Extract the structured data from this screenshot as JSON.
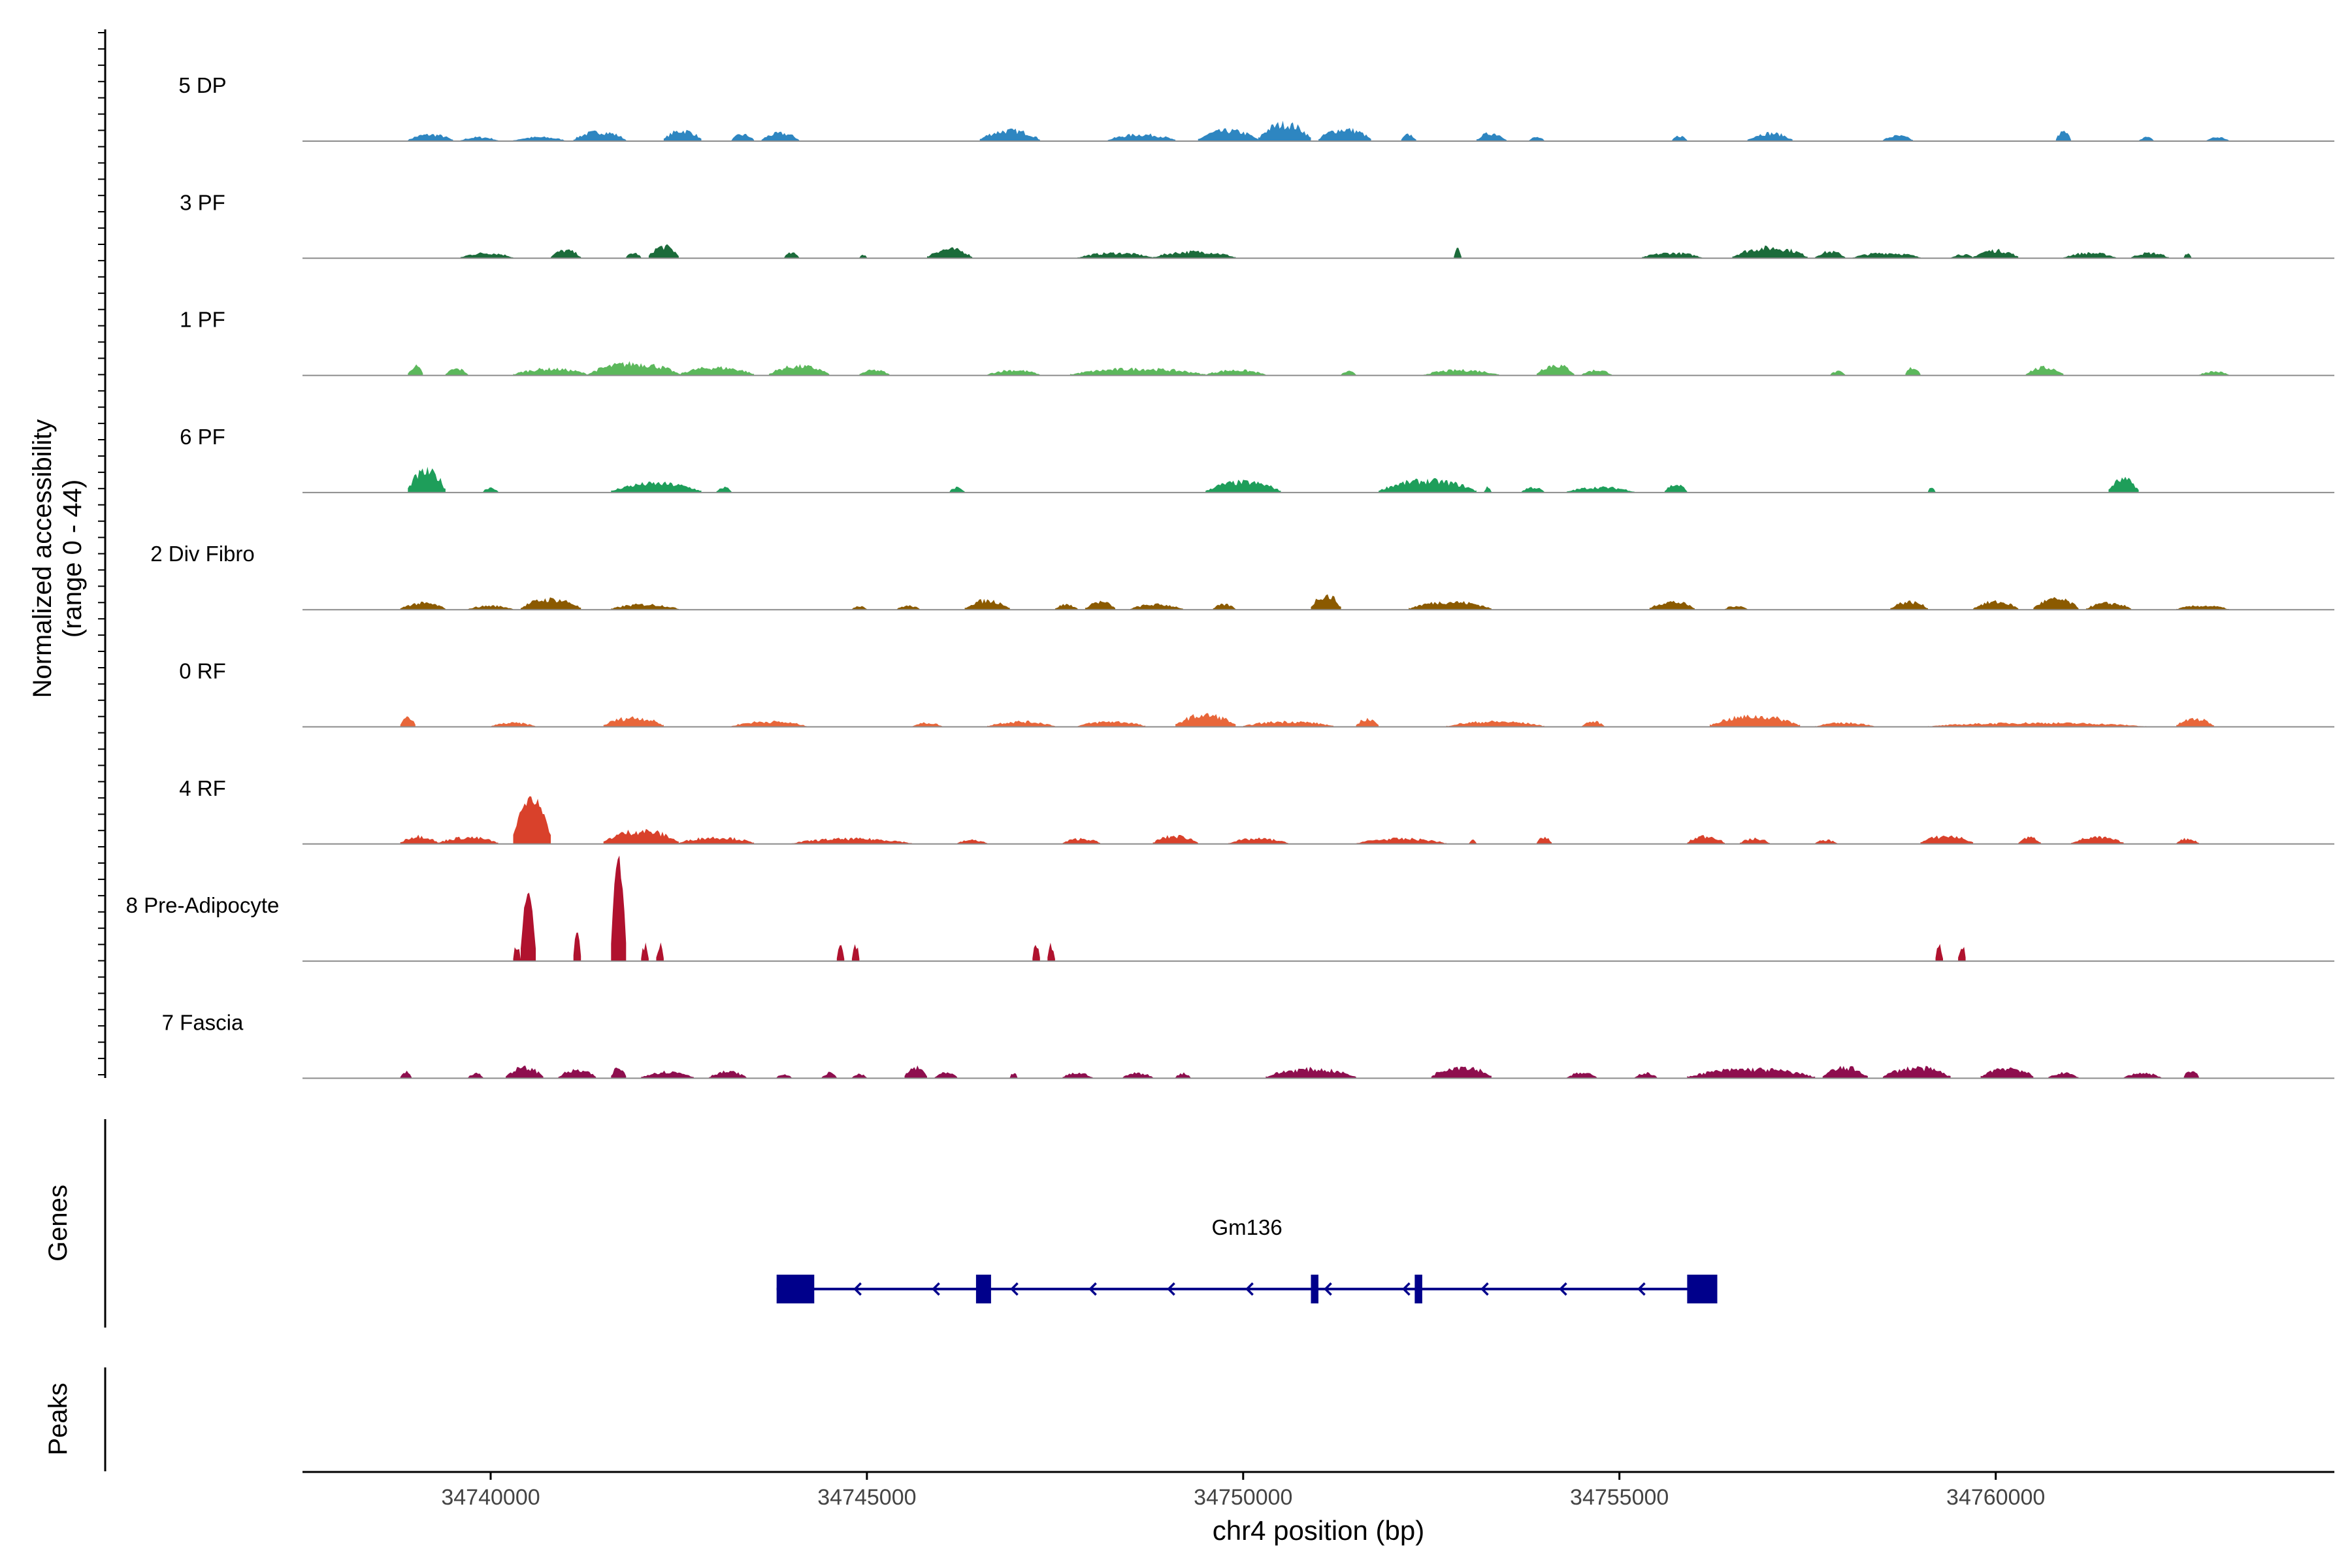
{
  "chart_data": {
    "type": "coverage-tracks",
    "title": "",
    "ylabel_line1": "Normalized accessibility",
    "ylabel_line2": "(range 0 - 44)",
    "yrange": [
      0,
      44
    ],
    "xlabel": "chr4 position (bp)",
    "xlim": [
      34737500,
      34764500
    ],
    "xticks": [
      34740000,
      34745000,
      34750000,
      34755000,
      34760000
    ],
    "xtick_labels": [
      "34740000",
      "34745000",
      "34750000",
      "34755000",
      "34760000"
    ],
    "tracks": [
      {
        "name": "5 DP",
        "color": "#2E86C1",
        "peaks": [
          [
            34738900,
            34739500,
            2.5
          ],
          [
            34739600,
            34740100,
            1.5
          ],
          [
            34740300,
            34741000,
            1.5
          ],
          [
            34741100,
            34741800,
            3.5
          ],
          [
            34742300,
            34742800,
            4
          ],
          [
            34743200,
            34743500,
            2.5
          ],
          [
            34743600,
            34744100,
            3
          ],
          [
            34746500,
            34747300,
            4
          ],
          [
            34748200,
            34749100,
            2.5
          ],
          [
            34749400,
            34750200,
            4
          ],
          [
            34750200,
            34750900,
            6.5
          ],
          [
            34751000,
            34751700,
            4.5
          ],
          [
            34752100,
            34752300,
            2.5
          ],
          [
            34753100,
            34753500,
            3
          ],
          [
            34753800,
            34754000,
            1.5
          ],
          [
            34755700,
            34755900,
            2
          ],
          [
            34756700,
            34757300,
            3
          ],
          [
            34758500,
            34758900,
            2
          ],
          [
            34760800,
            34761000,
            3.5
          ],
          [
            34761900,
            34762100,
            1.5
          ],
          [
            34762800,
            34763100,
            1.5
          ]
        ]
      },
      {
        "name": "3 PF",
        "color": "#1B6B3A",
        "peaks": [
          [
            34739600,
            34740300,
            2
          ],
          [
            34740800,
            34741200,
            3
          ],
          [
            34741800,
            34742000,
            2
          ],
          [
            34742100,
            34742500,
            4.5
          ],
          [
            34743900,
            34744100,
            2
          ],
          [
            34744900,
            34745000,
            1.5
          ],
          [
            34745800,
            34746400,
            3.5
          ],
          [
            34747800,
            34748800,
            2
          ],
          [
            34748800,
            34749900,
            2.5
          ],
          [
            34752800,
            34752900,
            3.5
          ],
          [
            34755300,
            34756100,
            2
          ],
          [
            34756500,
            34757500,
            4
          ],
          [
            34757600,
            34758000,
            2.5
          ],
          [
            34758100,
            34759000,
            2
          ],
          [
            34759400,
            34759700,
            1.5
          ],
          [
            34759700,
            34760300,
            3
          ],
          [
            34760900,
            34761600,
            2
          ],
          [
            34761800,
            34762300,
            2
          ],
          [
            34762500,
            34762600,
            2
          ]
        ]
      },
      {
        "name": "1 PF",
        "color": "#5CB85C",
        "peaks": [
          [
            34738900,
            34739100,
            3.5
          ],
          [
            34739400,
            34739700,
            2.5
          ],
          [
            34740300,
            34741300,
            2.5
          ],
          [
            34741300,
            34742500,
            4.5
          ],
          [
            34742500,
            34743500,
            3
          ],
          [
            34743700,
            34744500,
            3.5
          ],
          [
            34744900,
            34745300,
            2
          ],
          [
            34746600,
            34747300,
            2
          ],
          [
            34747700,
            34749500,
            2.5
          ],
          [
            34749500,
            34750300,
            2
          ],
          [
            34751300,
            34751500,
            1.5
          ],
          [
            34752400,
            34753400,
            2
          ],
          [
            34753900,
            34754400,
            4
          ],
          [
            34754500,
            34754900,
            2
          ],
          [
            34757800,
            34758000,
            1.5
          ],
          [
            34758800,
            34759000,
            3
          ],
          [
            34760400,
            34760900,
            3
          ],
          [
            34762700,
            34763100,
            1.5
          ]
        ]
      },
      {
        "name": "6 PF",
        "color": "#1E9E5A",
        "peaks": [
          [
            34738900,
            34739400,
            8
          ],
          [
            34739900,
            34740100,
            2
          ],
          [
            34741600,
            34742800,
            3.5
          ],
          [
            34743000,
            34743200,
            2
          ],
          [
            34746100,
            34746300,
            2
          ],
          [
            34749500,
            34750500,
            4
          ],
          [
            34751800,
            34753100,
            4.5
          ],
          [
            34753200,
            34753300,
            2
          ],
          [
            34753700,
            34754000,
            2
          ],
          [
            34754300,
            34755200,
            2
          ],
          [
            34755600,
            34755900,
            3
          ],
          [
            34759100,
            34759200,
            2
          ],
          [
            34761500,
            34761900,
            5
          ]
        ]
      },
      {
        "name": "2 Div Fibro",
        "color": "#8B5A00",
        "peaks": [
          [
            34738800,
            34739400,
            2.5
          ],
          [
            34739700,
            34740300,
            1.5
          ],
          [
            34740400,
            34741200,
            4
          ],
          [
            34741600,
            34742500,
            2
          ],
          [
            34744800,
            34745000,
            1.5
          ],
          [
            34745400,
            34745700,
            1.5
          ],
          [
            34746300,
            34746900,
            3.5
          ],
          [
            34747500,
            34747800,
            2
          ],
          [
            34747900,
            34748300,
            3
          ],
          [
            34748500,
            34749200,
            2
          ],
          [
            34749600,
            34749900,
            2
          ],
          [
            34750900,
            34751300,
            5.5
          ],
          [
            34752200,
            34753300,
            3
          ],
          [
            34755400,
            34756000,
            3
          ],
          [
            34756400,
            34756700,
            1.5
          ],
          [
            34758600,
            34759100,
            3
          ],
          [
            34759700,
            34760300,
            3
          ],
          [
            34760500,
            34761100,
            4
          ],
          [
            34761200,
            34761800,
            2.5
          ],
          [
            34762400,
            34763100,
            1.5
          ]
        ]
      },
      {
        "name": "0 RF",
        "color": "#E8663A",
        "peaks": [
          [
            34738800,
            34739000,
            3.5
          ],
          [
            34740000,
            34740600,
            1.5
          ],
          [
            34741500,
            34742300,
            3.5
          ],
          [
            34743200,
            34744200,
            2
          ],
          [
            34745600,
            34746000,
            1.5
          ],
          [
            34746600,
            34747500,
            2
          ],
          [
            34747800,
            34748700,
            2
          ],
          [
            34749100,
            34749900,
            4.5
          ],
          [
            34750000,
            34751200,
            2
          ],
          [
            34751500,
            34751800,
            3
          ],
          [
            34752700,
            34754000,
            2
          ],
          [
            34754500,
            34754800,
            2
          ],
          [
            34756200,
            34757400,
            4
          ],
          [
            34757600,
            34758400,
            1.5
          ],
          [
            34759100,
            34762000,
            1.5
          ],
          [
            34762400,
            34762900,
            3
          ]
        ]
      },
      {
        "name": "4 RF",
        "color": "#D9412B",
        "peaks": [
          [
            34738800,
            34739300,
            3
          ],
          [
            34739300,
            34740100,
            2.5
          ],
          [
            34740300,
            34740800,
            15
          ],
          [
            34741500,
            34742500,
            5
          ],
          [
            34742500,
            34743500,
            2.5
          ],
          [
            34744000,
            34745600,
            2
          ],
          [
            34746200,
            34746600,
            1.5
          ],
          [
            34747600,
            34748100,
            2
          ],
          [
            34748800,
            34749400,
            3
          ],
          [
            34749800,
            34750600,
            2
          ],
          [
            34751500,
            34752700,
            2
          ],
          [
            34753000,
            34753100,
            1.5
          ],
          [
            34753900,
            34754100,
            2.5
          ],
          [
            34755900,
            34756400,
            3
          ],
          [
            34756600,
            34757000,
            2
          ],
          [
            34757600,
            34757900,
            1.5
          ],
          [
            34759000,
            34759700,
            3
          ],
          [
            34760300,
            34760600,
            2.5
          ],
          [
            34761000,
            34761700,
            2.5
          ],
          [
            34762400,
            34762700,
            2
          ]
        ]
      },
      {
        "name": "8 Pre-Adipocyte",
        "color": "#B0122E",
        "peaks": [
          [
            34740300,
            34740400,
            6
          ],
          [
            34740400,
            34740600,
            22
          ],
          [
            34741100,
            34741200,
            10
          ],
          [
            34741600,
            34741800,
            33
          ],
          [
            34742000,
            34742100,
            6
          ],
          [
            34742200,
            34742300,
            6
          ],
          [
            34744600,
            34744700,
            6
          ],
          [
            34744800,
            34744900,
            6
          ],
          [
            34747200,
            34747300,
            6
          ],
          [
            34747400,
            34747500,
            6
          ],
          [
            34759200,
            34759300,
            6
          ],
          [
            34759500,
            34759600,
            6
          ]
        ]
      },
      {
        "name": "7 Fascia",
        "color": "#8E0E4E",
        "peaks": [
          [
            34738800,
            34738950,
            2.5
          ],
          [
            34739700,
            34739900,
            2
          ],
          [
            34740200,
            34740700,
            4
          ],
          [
            34740900,
            34741400,
            3
          ],
          [
            34741600,
            34741800,
            4
          ],
          [
            34742000,
            34742700,
            2.5
          ],
          [
            34742900,
            34743400,
            2.5
          ],
          [
            34743800,
            34744000,
            1.5
          ],
          [
            34744400,
            34744600,
            2
          ],
          [
            34744800,
            34745000,
            1.5
          ],
          [
            34745500,
            34745800,
            4
          ],
          [
            34745900,
            34746200,
            2
          ],
          [
            34746900,
            34747000,
            2
          ],
          [
            34747600,
            34748000,
            2
          ],
          [
            34748400,
            34748800,
            2
          ],
          [
            34749100,
            34749300,
            2
          ],
          [
            34750300,
            34751500,
            3.5
          ],
          [
            34752500,
            34753300,
            4.5
          ],
          [
            34754300,
            34754700,
            2
          ],
          [
            34755200,
            34755500,
            2
          ],
          [
            34755900,
            34757600,
            3.5
          ],
          [
            34757700,
            34758300,
            4
          ],
          [
            34758500,
            34759400,
            4
          ],
          [
            34759800,
            34760500,
            4
          ],
          [
            34760700,
            34761100,
            2
          ],
          [
            34761700,
            34762200,
            2
          ],
          [
            34762500,
            34762700,
            3
          ]
        ]
      }
    ],
    "genes": {
      "label": "Genes",
      "gene_name": "Gm136",
      "color": "#00008B",
      "start": 34743800,
      "end": 34756300,
      "strand": "-",
      "exons": [
        [
          34743800,
          34744300
        ],
        [
          34746450,
          34746650
        ],
        [
          34750900,
          34751000
        ],
        [
          34752280,
          34752380
        ],
        [
          34755900,
          34756300
        ]
      ]
    },
    "peaks_track": {
      "label": "Peaks"
    }
  }
}
